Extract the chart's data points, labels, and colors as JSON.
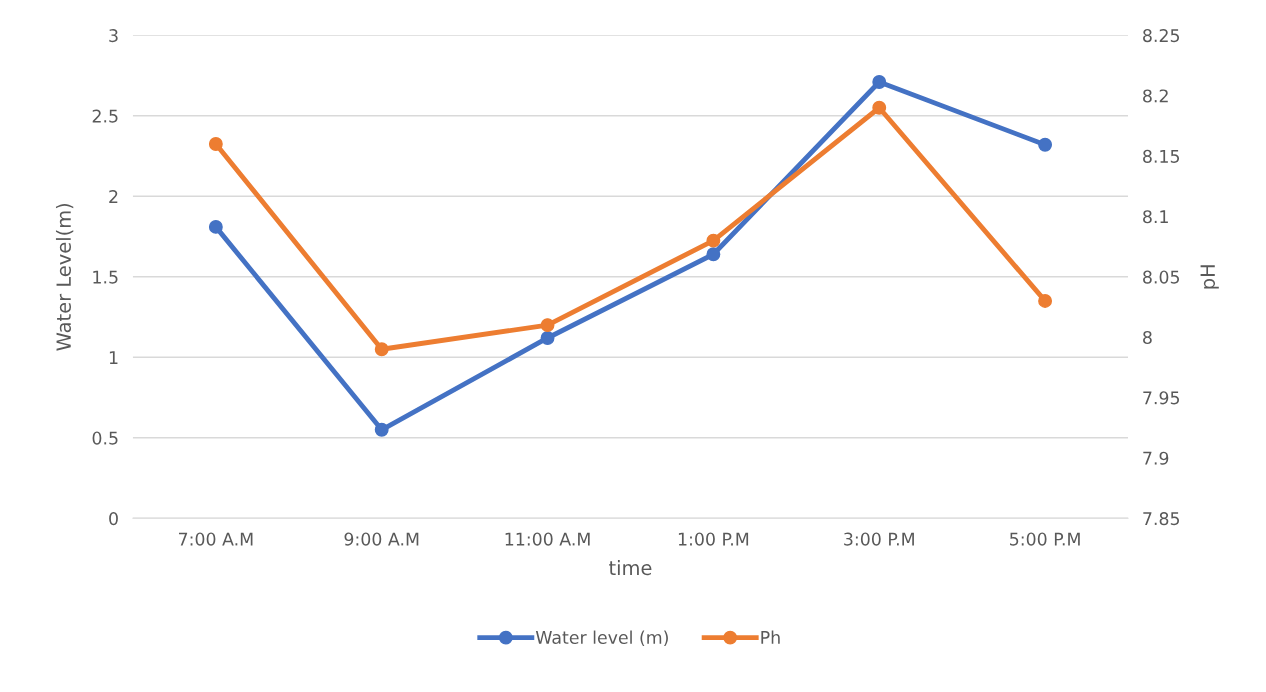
{
  "chart_data": {
    "type": "line",
    "xlabel": "time",
    "ylabel": "Water Level(m)",
    "y2label": "pH",
    "categories": [
      "7:00 A.M",
      "9:00 A.M",
      "11:00 A.M",
      "1:00 P.M",
      "3:00 P.M",
      "5:00 P.M"
    ],
    "series": [
      {
        "name": "Water level (m)",
        "color": "#4472c4",
        "values": [
          1.81,
          0.55,
          1.12,
          1.64,
          2.71,
          2.32
        ]
      },
      {
        "name": "Ph",
        "color": "#ed7d31",
        "axis": "y2",
        "values": [
          8.16,
          7.99,
          8.01,
          8.08,
          8.19,
          8.03
        ]
      }
    ],
    "ylim": [
      0,
      3
    ],
    "yticks": [
      0,
      0.5,
      1,
      1.5,
      2,
      2.5,
      3
    ],
    "y2lim": [
      7.85,
      8.25
    ],
    "y2ticks": [
      7.85,
      7.9,
      7.95,
      8,
      8.05,
      8.1,
      8.15,
      8.2,
      8.25
    ],
    "grid": "y",
    "legend": "bottom",
    "marker": "circle",
    "line_style": "solid"
  }
}
